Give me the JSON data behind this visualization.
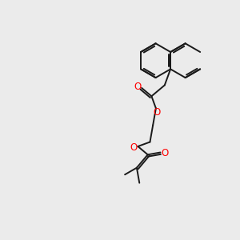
{
  "background_color": "#ebebeb",
  "bond_color": "#1a1a1a",
  "oxygen_color": "#ff0000",
  "line_width": 1.4,
  "dbo": 0.08,
  "figsize": [
    3.0,
    3.0
  ],
  "dpi": 100,
  "xlim": [
    0,
    10
  ],
  "ylim": [
    0,
    10
  ]
}
